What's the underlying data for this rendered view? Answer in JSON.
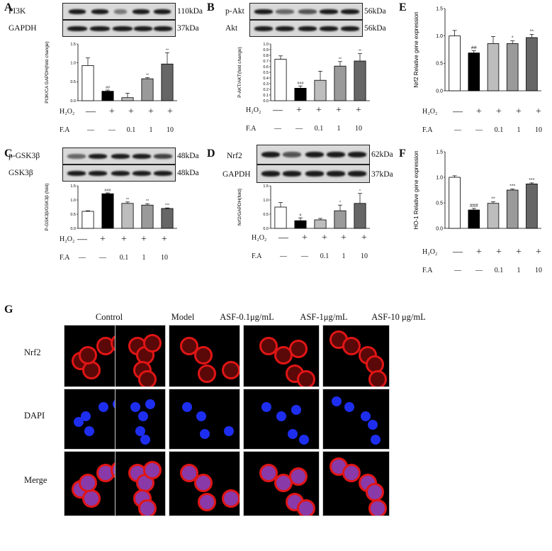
{
  "panel_letters": {
    "A": "A",
    "B": "B",
    "C": "C",
    "D": "D",
    "E": "E",
    "F": "F",
    "G": "G"
  },
  "blots": {
    "A": [
      {
        "name": "PI3K",
        "kda": "110kDa"
      },
      {
        "name": "GAPDH",
        "kda": "37kDa"
      }
    ],
    "B": [
      {
        "name": "p-Akt",
        "kda": "56kDa"
      },
      {
        "name": "Akt",
        "kda": "56kDa"
      }
    ],
    "C": [
      {
        "name": "p-GSK3β",
        "kda": "48kDa"
      },
      {
        "name": "GSK3β",
        "kda": "48kDa"
      }
    ],
    "D": [
      {
        "name": "Nrf2",
        "kda": "62kDa"
      },
      {
        "name": "GAPDH",
        "kda": "37kDa"
      }
    ]
  },
  "treatment": {
    "h2o2_label": "H₂O₂",
    "fa_label": "F.A",
    "h2o2_values": [
      "—",
      "+",
      "+",
      "+",
      "+"
    ],
    "fa_values": [
      "—",
      "—",
      "0.1",
      "1",
      "10"
    ]
  },
  "chart_data": [
    {
      "panel": "A",
      "type": "bar",
      "ylabel": "PI3K/CA GAPDH(fold change)",
      "ylim": [
        0,
        1.5
      ],
      "yticks": [
        "0.0",
        "0.5",
        "1.0",
        "1.5"
      ],
      "values": [
        0.93,
        0.25,
        0.08,
        0.58,
        0.97
      ],
      "errors": [
        0.2,
        0.03,
        0.12,
        0.03,
        0.3
      ],
      "sig": [
        "",
        "##",
        "",
        "**",
        "**"
      ]
    },
    {
      "panel": "B",
      "type": "bar",
      "ylabel": "P-AKT/AKT(fold change)",
      "ylim": [
        0,
        1.0
      ],
      "yticks": [
        "0.0",
        "0.1",
        "0.2",
        "0.3",
        "0.4",
        "0.5",
        "0.6",
        "0.7",
        "0.8",
        "0.9",
        "1.0"
      ],
      "values": [
        0.73,
        0.22,
        0.36,
        0.61,
        0.7
      ],
      "errors": [
        0.06,
        0.04,
        0.16,
        0.08,
        0.13
      ],
      "sig": [
        "",
        "###",
        "",
        "**",
        "**"
      ]
    },
    {
      "panel": "C",
      "type": "bar",
      "ylabel": "P-GSK3β/GSK3β (fold)",
      "ylim": [
        0,
        1.5
      ],
      "yticks": [
        "0.0",
        "0.5",
        "1.0",
        "1.5"
      ],
      "values": [
        0.6,
        1.22,
        0.88,
        0.82,
        0.7
      ],
      "errors": [
        0.02,
        0.03,
        0.05,
        0.05,
        0.02
      ],
      "sig": [
        "",
        "###",
        "**",
        "**",
        "***"
      ]
    },
    {
      "panel": "D",
      "type": "bar",
      "ylabel": "Nrf2/GAPDH(fold)",
      "ylim": [
        0,
        1.5
      ],
      "yticks": [
        "0.0",
        "0.5",
        "1.0",
        "1.5"
      ],
      "values": [
        0.75,
        0.27,
        0.3,
        0.62,
        0.88
      ],
      "errors": [
        0.16,
        0.1,
        0.05,
        0.2,
        0.35
      ],
      "sig": [
        "",
        "#",
        "",
        "*",
        "*"
      ]
    },
    {
      "panel": "E",
      "type": "bar",
      "ylabel": "Nrf2 Relative gene expression",
      "ylim": [
        0,
        1.5
      ],
      "yticks": [
        "0.0",
        "0.5",
        "1.0",
        "1.5"
      ],
      "values": [
        1.0,
        0.69,
        0.86,
        0.86,
        0.97
      ],
      "errors": [
        0.1,
        0.04,
        0.13,
        0.05,
        0.06
      ],
      "sig": [
        "",
        "##",
        "",
        "*",
        "**"
      ]
    },
    {
      "panel": "F",
      "type": "bar",
      "ylabel": "HO-1 Relative gene expression",
      "ylim": [
        0,
        1.5
      ],
      "yticks": [
        "0.0",
        "0.5",
        "1.0",
        "1.5"
      ],
      "values": [
        1.0,
        0.36,
        0.49,
        0.75,
        0.87
      ],
      "errors": [
        0.03,
        0.03,
        0.03,
        0.02,
        0.02
      ],
      "sig": [
        "",
        "###",
        "**",
        "***",
        "***"
      ]
    }
  ],
  "bar_colors": [
    "#ffffff",
    "#000000",
    "#bdbdbd",
    "#9a9a9a",
    "#666666"
  ],
  "microscopy": {
    "columns": [
      "Control",
      "Model",
      "ASF-0.1μg/mL",
      "ASF-1μg/mL",
      "ASF-10 μg/mL"
    ],
    "rows": [
      "Nrf2",
      "DAPI",
      "Merge"
    ]
  }
}
